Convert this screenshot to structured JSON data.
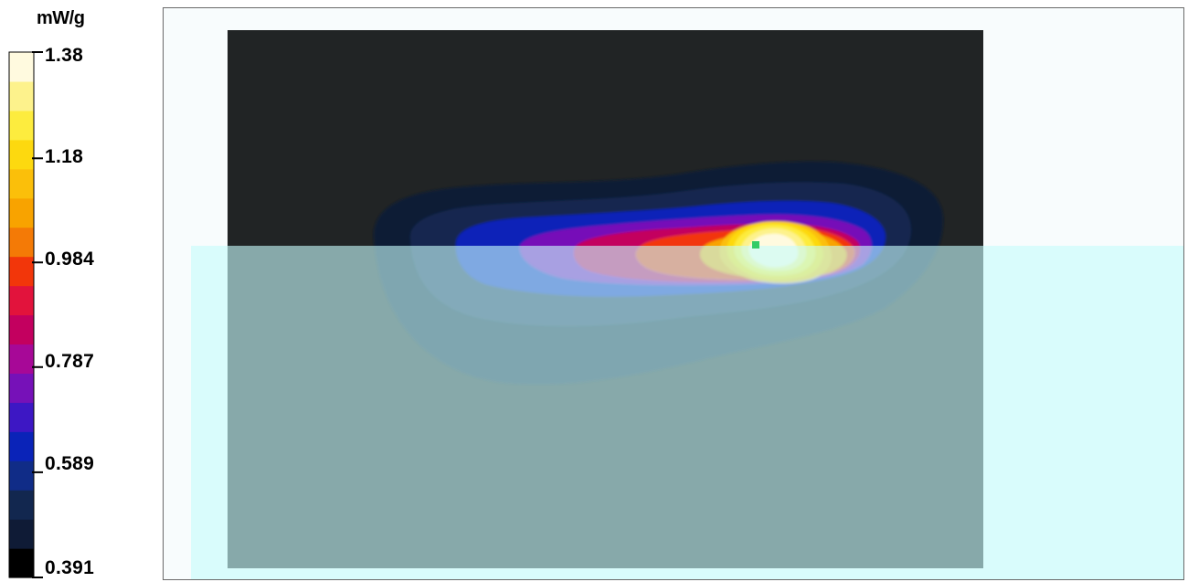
{
  "chart_data": {
    "type": "heatmap",
    "colorbar": {
      "unit": "mW/g",
      "tick_labels": [
        "1.38",
        "1.18",
        "0.984",
        "0.787",
        "0.589",
        "0.391"
      ],
      "tick_values": [
        1.38,
        1.18,
        0.984,
        0.787,
        0.589,
        0.391
      ],
      "range": [
        0.391,
        1.38
      ],
      "levels": [
        {
          "color": "#000000"
        },
        {
          "color": "#0f1b36"
        },
        {
          "color": "#12274f"
        },
        {
          "color": "#102c87"
        },
        {
          "color": "#0a23b8"
        },
        {
          "color": "#3d17c4"
        },
        {
          "color": "#7611b8"
        },
        {
          "color": "#a70897"
        },
        {
          "color": "#c3005f"
        },
        {
          "color": "#e2133c"
        },
        {
          "color": "#f2360a"
        },
        {
          "color": "#f47a06"
        },
        {
          "color": "#f8a300"
        },
        {
          "color": "#fbbf0a"
        },
        {
          "color": "#fdd90f"
        },
        {
          "color": "#fdec3e"
        },
        {
          "color": "#fdf28c"
        },
        {
          "color": "#fffadf"
        }
      ]
    },
    "peak": {
      "value": 1.38,
      "marker_color": "#33cc66"
    },
    "colors": {
      "scan_area": "#212425",
      "phantom_overlay": "#c6fbfb",
      "frame_background": "#f8fcfd"
    }
  }
}
